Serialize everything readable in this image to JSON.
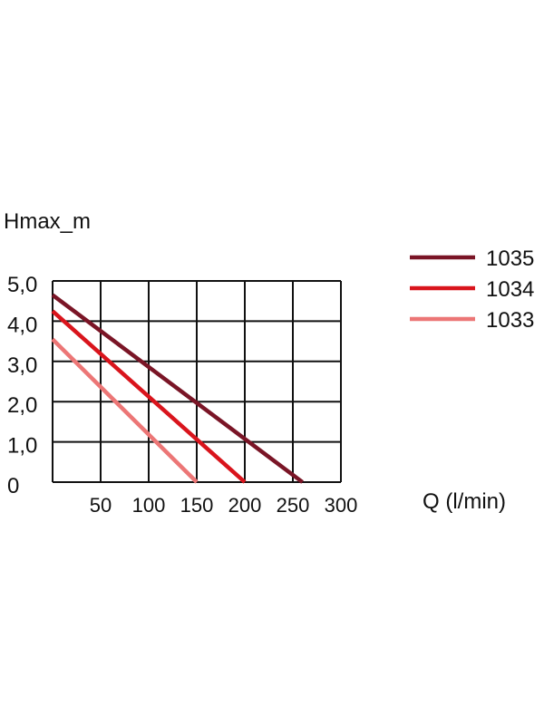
{
  "chart_data": {
    "type": "line",
    "title": "",
    "ylabel": "Hmax_m",
    "xlabel": "Q (l/min)",
    "xlim": [
      0,
      300
    ],
    "ylim": [
      0,
      5
    ],
    "grid": true,
    "legend_position": "top-right",
    "x_ticks": [
      "50",
      "100",
      "150",
      "200",
      "250",
      "300"
    ],
    "y_ticks": [
      "0",
      "1,0",
      "2,0",
      "3,0",
      "4,0",
      "5,0"
    ],
    "series": [
      {
        "name": "1035",
        "color": "#7a1526",
        "x": [
          0,
          260
        ],
        "y": [
          4.65,
          0
        ]
      },
      {
        "name": "1034",
        "color": "#d9141c",
        "x": [
          0,
          200
        ],
        "y": [
          4.25,
          0
        ]
      },
      {
        "name": "1033",
        "color": "#ec7676",
        "x": [
          0,
          150
        ],
        "y": [
          3.55,
          0
        ]
      }
    ]
  }
}
